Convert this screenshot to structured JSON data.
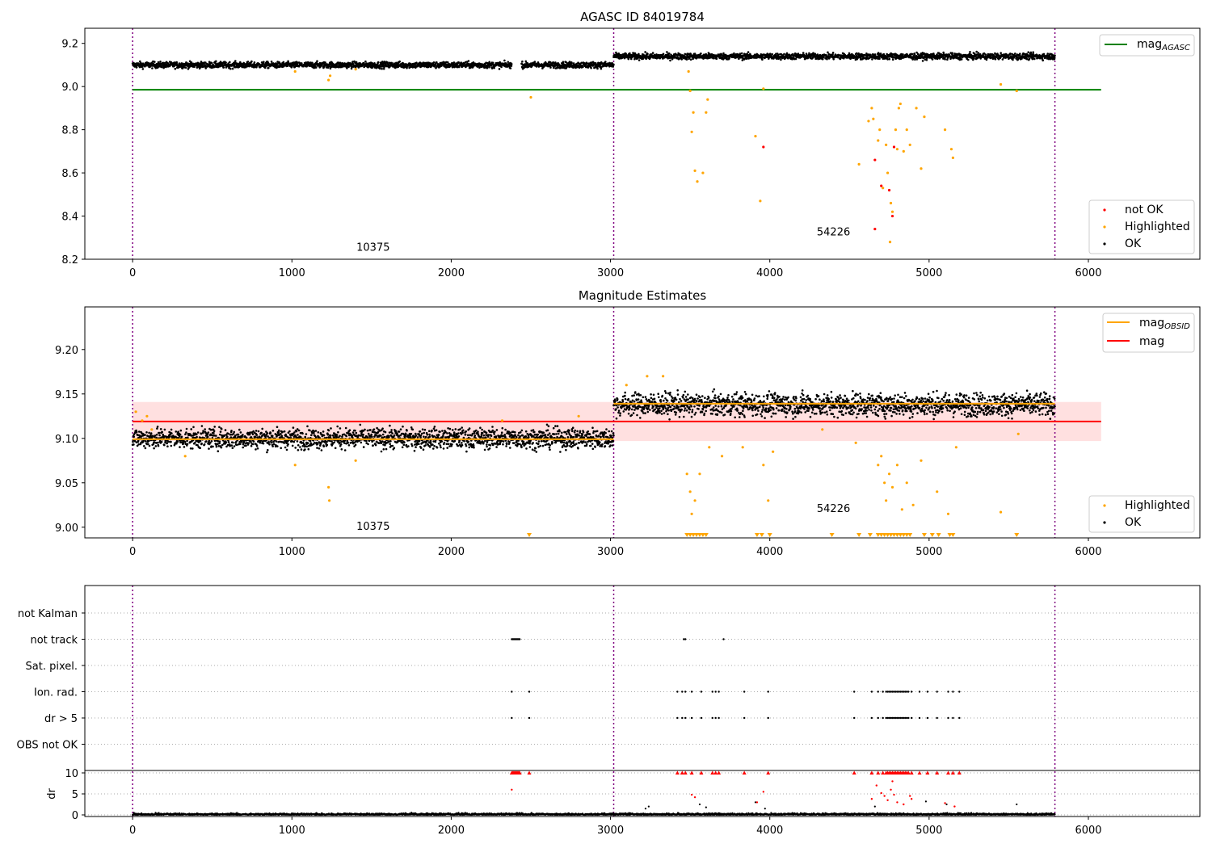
{
  "figure": {
    "width": 1500,
    "height": 1050
  },
  "chart_data": [
    {
      "type": "scatter",
      "title": "AGASC ID 84019784",
      "xlim": [
        -300,
        6700
      ],
      "ylim": [
        8.2,
        9.27
      ],
      "xticks": [
        "0",
        "1000",
        "2000",
        "3000",
        "4000",
        "5000",
        "6000"
      ],
      "yticks": [
        "8.2",
        "8.4",
        "8.6",
        "8.8",
        "9.0",
        "9.2"
      ],
      "obs_boundaries": [
        0,
        3020,
        5790
      ],
      "annotations": [
        {
          "text": "10375",
          "x": 1510,
          "y": 8.24
        },
        {
          "text": "54226",
          "x": 4400,
          "y": 8.31
        }
      ],
      "hline": {
        "name": "mag_AGASC",
        "label_main": "mag",
        "label_sub": "AGASC",
        "y": 8.985,
        "x_range": [
          0,
          6080
        ],
        "color": "#008000"
      },
      "segments": [
        {
          "x_range": [
            0,
            3020
          ],
          "level": 9.1,
          "spread": 0.01
        },
        {
          "x_range": [
            3020,
            5790
          ],
          "level": 9.14,
          "spread": 0.01
        }
      ],
      "gaps": [
        [
          2380,
          2440
        ]
      ],
      "highlighted": [
        [
          3490,
          9.07
        ],
        [
          3500,
          8.98
        ],
        [
          3510,
          8.79
        ],
        [
          3520,
          8.88
        ],
        [
          3530,
          8.61
        ],
        [
          3545,
          8.56
        ],
        [
          3580,
          8.6
        ],
        [
          3600,
          8.88
        ],
        [
          3610,
          8.94
        ],
        [
          3910,
          8.77
        ],
        [
          3940,
          8.47
        ],
        [
          3960,
          8.99
        ],
        [
          4560,
          8.64
        ],
        [
          4620,
          8.84
        ],
        [
          4640,
          8.9
        ],
        [
          4650,
          8.85
        ],
        [
          4680,
          8.75
        ],
        [
          4690,
          8.8
        ],
        [
          4710,
          8.53
        ],
        [
          4730,
          8.73
        ],
        [
          4740,
          8.6
        ],
        [
          4755,
          8.28
        ],
        [
          4760,
          8.46
        ],
        [
          4770,
          8.42
        ],
        [
          4790,
          8.8
        ],
        [
          4800,
          8.71
        ],
        [
          4810,
          8.9
        ],
        [
          4820,
          8.92
        ],
        [
          4840,
          8.7
        ],
        [
          4860,
          8.8
        ],
        [
          4880,
          8.73
        ],
        [
          4920,
          8.9
        ],
        [
          4950,
          8.62
        ],
        [
          4970,
          8.86
        ],
        [
          5100,
          8.8
        ],
        [
          5140,
          8.71
        ],
        [
          5150,
          8.67
        ],
        [
          5450,
          9.01
        ],
        [
          5550,
          8.98
        ],
        [
          1230,
          9.03
        ],
        [
          1240,
          9.05
        ],
        [
          2500,
          8.95
        ],
        [
          1400,
          9.08
        ],
        [
          1020,
          9.07
        ]
      ],
      "not_ok": [
        [
          3960,
          8.72
        ],
        [
          4660,
          8.66
        ],
        [
          4660,
          8.34
        ],
        [
          4700,
          8.54
        ],
        [
          4750,
          8.52
        ],
        [
          4770,
          8.4
        ],
        [
          4780,
          8.72
        ]
      ],
      "legend": [
        {
          "label": "not OK",
          "color": "#ff0000"
        },
        {
          "label": "Highlighted",
          "color": "#ffa500"
        },
        {
          "label": "OK",
          "color": "#000000"
        }
      ]
    },
    {
      "type": "scatter",
      "title": "Magnitude Estimates",
      "xlim": [
        -300,
        6700
      ],
      "ylim": [
        8.988,
        9.248
      ],
      "xticks": [
        "0",
        "1000",
        "2000",
        "3000",
        "4000",
        "5000",
        "6000"
      ],
      "yticks": [
        "9.00",
        "9.05",
        "9.10",
        "9.15",
        "9.20"
      ],
      "obs_boundaries": [
        0,
        3020,
        5790
      ],
      "annotations": [
        {
          "text": "10375",
          "x": 1510,
          "y": 8.997
        },
        {
          "text": "54226",
          "x": 4400,
          "y": 9.017
        }
      ],
      "mag_band": {
        "low": 9.097,
        "high": 9.141,
        "x_range": [
          0,
          6080
        ],
        "color": "#ffcccc"
      },
      "mag_line": {
        "name": "mag",
        "y": 9.119,
        "x_range": [
          0,
          6080
        ],
        "color": "#ff0000"
      },
      "mag_obsid": [
        {
          "x_range": [
            0,
            3020
          ],
          "y": 9.099
        },
        {
          "x_range": [
            3020,
            5790
          ],
          "y": 9.139
        }
      ],
      "segments": [
        {
          "x_range": [
            0,
            3020
          ],
          "level": 9.1,
          "spread": 0.008
        },
        {
          "x_range": [
            3020,
            5790
          ],
          "level": 9.138,
          "spread": 0.009
        }
      ],
      "highlighted": [
        [
          20,
          9.13
        ],
        [
          60,
          9.12
        ],
        [
          90,
          9.125
        ],
        [
          120,
          9.11
        ],
        [
          330,
          9.08
        ],
        [
          1020,
          9.07
        ],
        [
          1230,
          9.045
        ],
        [
          1235,
          9.03
        ],
        [
          1400,
          9.075
        ],
        [
          2320,
          9.12
        ],
        [
          2800,
          9.125
        ],
        [
          3100,
          9.16
        ],
        [
          3230,
          9.17
        ],
        [
          3330,
          9.17
        ],
        [
          3480,
          9.06
        ],
        [
          3500,
          9.04
        ],
        [
          3510,
          9.015
        ],
        [
          3530,
          9.03
        ],
        [
          3560,
          9.06
        ],
        [
          3620,
          9.09
        ],
        [
          3700,
          9.08
        ],
        [
          3830,
          9.09
        ],
        [
          3960,
          9.07
        ],
        [
          3990,
          9.03
        ],
        [
          4020,
          9.085
        ],
        [
          4330,
          9.11
        ],
        [
          4540,
          9.095
        ],
        [
          4680,
          9.07
        ],
        [
          4700,
          9.08
        ],
        [
          4720,
          9.05
        ],
        [
          4730,
          9.03
        ],
        [
          4750,
          9.06
        ],
        [
          4770,
          9.045
        ],
        [
          4800,
          9.07
        ],
        [
          4830,
          9.02
        ],
        [
          4860,
          9.05
        ],
        [
          4900,
          9.025
        ],
        [
          4950,
          9.075
        ],
        [
          5050,
          9.04
        ],
        [
          5120,
          9.015
        ],
        [
          5170,
          9.09
        ],
        [
          5450,
          9.017
        ],
        [
          5560,
          9.105
        ]
      ],
      "clipped_markers_x": [
        2490,
        3480,
        3500,
        3520,
        3540,
        3560,
        3580,
        3600,
        3920,
        3950,
        4000,
        4390,
        4560,
        4630,
        4680,
        4700,
        4720,
        4740,
        4760,
        4780,
        4800,
        4820,
        4840,
        4860,
        4880,
        4970,
        5020,
        5060,
        5130,
        5150,
        5550
      ],
      "legend": [
        {
          "label_main": "mag",
          "label_sub": "OBSID",
          "color": "#ffa500"
        },
        {
          "label": "mag",
          "color": "#ff0000"
        },
        {
          "label": "Highlighted",
          "color": "#ffa500"
        },
        {
          "label": "OK",
          "color": "#000000"
        }
      ]
    },
    {
      "type": "scatter",
      "title": "",
      "xlim": [
        -300,
        6700
      ],
      "xticks": [
        "0",
        "1000",
        "2000",
        "3000",
        "4000",
        "5000",
        "6000"
      ],
      "obs_boundaries": [
        0,
        3020,
        5790
      ],
      "categories": [
        "not Kalman",
        "not track",
        "Sat. pixel.",
        "Ion. rad.",
        "dr > 5",
        "OBS not OK"
      ],
      "flag_points": {
        "not track": [
          2380,
          2385,
          2390,
          2395,
          2400,
          2405,
          2410,
          2415,
          2420,
          2425,
          2430,
          3460,
          3470,
          3710
        ],
        "Ion. rad.": [
          2380,
          2490,
          3420,
          3450,
          3470,
          3510,
          3570,
          3640,
          3660,
          3680,
          3840,
          3990,
          4530,
          4640,
          4680,
          4710,
          4730,
          4740,
          4750,
          4760,
          4770,
          4780,
          4790,
          4800,
          4810,
          4820,
          4830,
          4840,
          4850,
          4860,
          4870,
          4890,
          4940,
          4990,
          5050,
          5120,
          5150,
          5190
        ],
        "dr > 5": [
          2380,
          2490,
          3420,
          3450,
          3470,
          3510,
          3570,
          3640,
          3660,
          3680,
          3840,
          3990,
          4530,
          4640,
          4680,
          4710,
          4730,
          4740,
          4750,
          4760,
          4770,
          4780,
          4790,
          4800,
          4810,
          4820,
          4830,
          4840,
          4850,
          4860,
          4870,
          4890,
          4940,
          4990,
          5050,
          5120,
          5150,
          5190
        ]
      },
      "dr_subplot": {
        "ylabel": "dr",
        "ylim": [
          -0.5,
          10.5
        ],
        "yticks": [
          "0",
          "5",
          "10"
        ],
        "capped_red_x": [
          2380,
          2385,
          2390,
          2395,
          2400,
          2405,
          2410,
          2415,
          2420,
          2425,
          2430,
          2490,
          3420,
          3450,
          3470,
          3510,
          3570,
          3640,
          3660,
          3680,
          3840,
          3990,
          4530,
          4640,
          4680,
          4710,
          4730,
          4740,
          4750,
          4760,
          4770,
          4780,
          4790,
          4800,
          4810,
          4820,
          4830,
          4840,
          4850,
          4860,
          4870,
          4890,
          4940,
          4990,
          5050,
          5120,
          5150,
          5190
        ],
        "red_points": [
          [
            2380,
            6
          ],
          [
            3510,
            4.8
          ],
          [
            3530,
            4.2
          ],
          [
            3920,
            3
          ],
          [
            3960,
            5.5
          ],
          [
            4640,
            3.8
          ],
          [
            4670,
            7
          ],
          [
            4700,
            5.2
          ],
          [
            4720,
            4.5
          ],
          [
            4740,
            3.5
          ],
          [
            4760,
            6
          ],
          [
            4770,
            8
          ],
          [
            4780,
            4.8
          ],
          [
            4800,
            3
          ],
          [
            4840,
            2.5
          ],
          [
            4880,
            4.5
          ],
          [
            4890,
            3.8
          ],
          [
            5100,
            2.8
          ],
          [
            5160,
            2
          ]
        ],
        "black_points": [
          [
            3220,
            1.5
          ],
          [
            3240,
            2
          ],
          [
            3560,
            2.5
          ],
          [
            3600,
            1.8
          ],
          [
            3910,
            3
          ],
          [
            3970,
            1.5
          ],
          [
            4980,
            3.2
          ],
          [
            5110,
            2.5
          ],
          [
            5550,
            2.5
          ],
          [
            4660,
            2
          ]
        ]
      }
    }
  ]
}
